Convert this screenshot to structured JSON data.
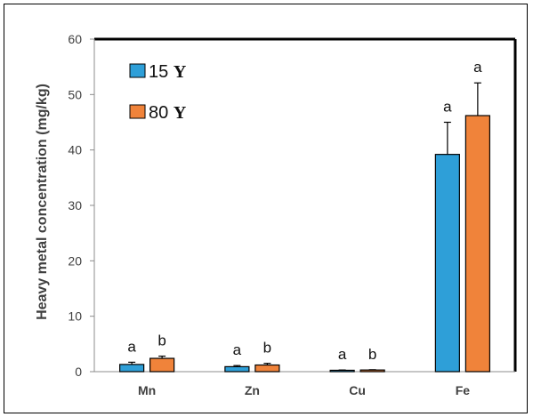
{
  "chart_data": {
    "type": "bar",
    "categories": [
      "Mn",
      "Zn",
      "Cu",
      "Fe"
    ],
    "series": [
      {
        "name": "15",
        "unit": "Y",
        "color": "#2E9FD8",
        "values": [
          1.3,
          0.9,
          0.25,
          39.2
        ],
        "errors": [
          0.4,
          0.2,
          0.05,
          5.8
        ],
        "labels": [
          "a",
          "a",
          "a",
          "a"
        ]
      },
      {
        "name": "80",
        "unit": "Y",
        "color": "#F0833A",
        "values": [
          2.4,
          1.2,
          0.3,
          46.2
        ],
        "errors": [
          0.4,
          0.3,
          0.05,
          5.9
        ],
        "labels": [
          "b",
          "b",
          "b",
          "a"
        ]
      }
    ],
    "xlabel": "",
    "ylabel": "Heavy metal concentration (mg/kg)",
    "ylim": [
      0,
      60
    ],
    "yticks": [
      0,
      10,
      20,
      30,
      40,
      50,
      60
    ],
    "grid": false,
    "legend_position": "top-left"
  }
}
